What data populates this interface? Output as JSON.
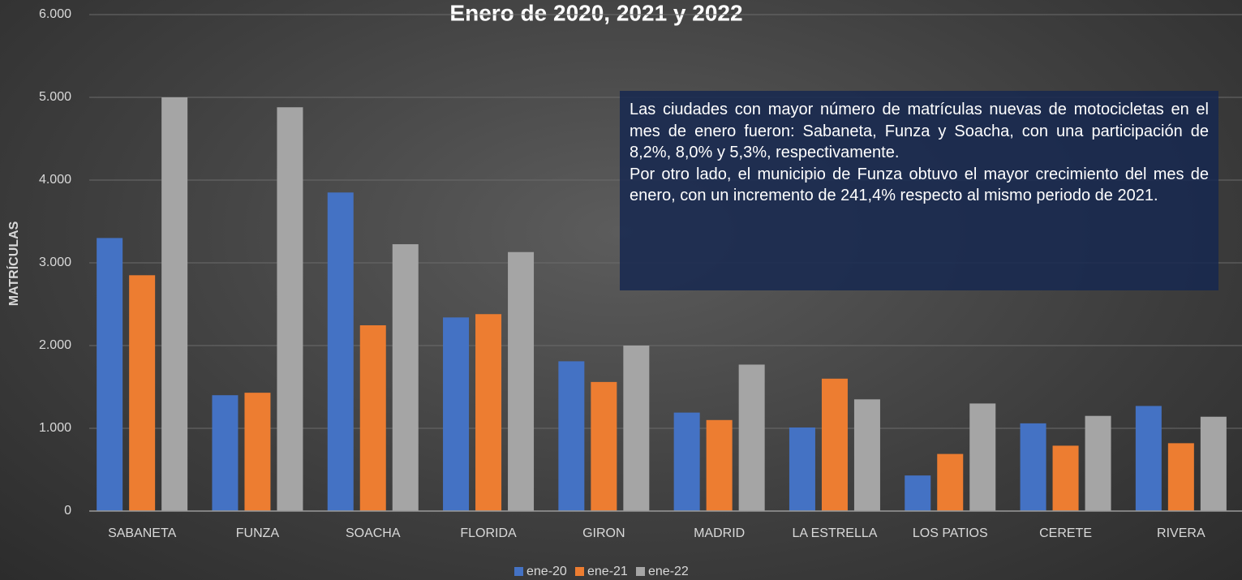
{
  "chart_data": {
    "type": "bar",
    "title": "Enero de 2020, 2021 y 2022",
    "y_label": "MATRÍCULAS",
    "categories": [
      "SABANETA",
      "FUNZA",
      "SOACHA",
      "FLORIDA",
      "GIRON",
      "MADRID",
      "LA ESTRELLA",
      "LOS PATIOS",
      "CERETE",
      "RIVERA"
    ],
    "series": [
      {
        "name": "ene-20",
        "color": "#4472c4",
        "values": [
          3300,
          1400,
          3850,
          2340,
          1810,
          1190,
          1010,
          430,
          1060,
          1270
        ]
      },
      {
        "name": "ene-21",
        "color": "#ed7d31",
        "values": [
          2850,
          1430,
          2245,
          2380,
          1560,
          1100,
          1600,
          690,
          790,
          820
        ]
      },
      {
        "name": "ene-22",
        "color": "#a5a5a5",
        "values": [
          5000,
          4880,
          3225,
          3130,
          2000,
          1770,
          1350,
          1300,
          1150,
          1140
        ]
      }
    ],
    "ylim": [
      0,
      6000
    ],
    "yticks": [
      0,
      {
        "value": 1000,
        "label": "1.000"
      },
      {
        "value": 2000,
        "label": "2.000"
      },
      {
        "value": 3000,
        "label": "3.000"
      },
      {
        "value": 4000,
        "label": "4.000"
      },
      {
        "value": 5000,
        "label": "5.000"
      },
      {
        "value": 6000,
        "label": "6.000"
      }
    ],
    "grid": true,
    "legend": "bottom",
    "annotation": [
      "Las ciudades con mayor número de matrículas nuevas de motocicletas en el mes de enero fueron: Sabaneta, Funza y Soacha, con una participación de 8,2%, 8,0% y 5,3%, respectivamente.",
      "Por otro lado, el municipio de Funza obtuvo el mayor crecimiento del mes de enero, con un incremento de 241,4% respecto al mismo periodo de 2021."
    ]
  }
}
